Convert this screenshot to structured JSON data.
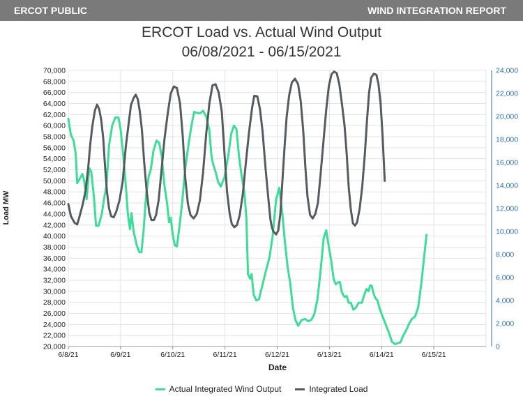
{
  "header": {
    "left_label": "ERCOT PUBLIC",
    "right_label": "WIND INTEGRATION REPORT"
  },
  "colors": {
    "header_bg": "#7a7a7a",
    "wind": "#3ddc97",
    "load": "#555b61",
    "right_axis": "#2f6fb0"
  },
  "chart_data": {
    "type": "line",
    "title": "ERCOT Load vs. Actual Wind Output",
    "subtitle": "06/08/2021  -  06/15/2021",
    "xlabel": "Date",
    "ylabel": "Load MW",
    "x_tick_labels": [
      "6/8/21",
      "6/9/21",
      "6/10/21",
      "6/11/21",
      "6/12/21",
      "6/13/21",
      "6/14/21",
      "6/15/21"
    ],
    "x_range_days": [
      0,
      8
    ],
    "y_left": {
      "lim": [
        20000,
        70000
      ],
      "tick_labels": [
        "20,000",
        "22,000",
        "24,000",
        "26,000",
        "28,000",
        "30,000",
        "32,000",
        "34,000",
        "36,000",
        "38,000",
        "40,000",
        "42,000",
        "44,000",
        "46,000",
        "48,000",
        "50,000",
        "52,000",
        "54,000",
        "56,000",
        "58,000",
        "60,000",
        "62,000",
        "64,000",
        "66,000",
        "68,000",
        "70,000"
      ]
    },
    "y_right": {
      "lim": [
        0,
        24000
      ],
      "tick_labels": [
        "0",
        "2,000",
        "4,000",
        "6,000",
        "8,000",
        "10,000",
        "12,000",
        "14,000",
        "16,000",
        "18,000",
        "20,000",
        "22,000",
        "24,000"
      ]
    },
    "grid": true,
    "legend_position": "bottom-center",
    "series": [
      {
        "name": "Actual Integrated Wind Output",
        "axis": "right",
        "color": "#3ddc97",
        "points": [
          [
            0.0,
            19800
          ],
          [
            0.05,
            18400
          ],
          [
            0.1,
            17900
          ],
          [
            0.14,
            16800
          ],
          [
            0.17,
            14200
          ],
          [
            0.22,
            14600
          ],
          [
            0.27,
            15000
          ],
          [
            0.3,
            14500
          ],
          [
            0.35,
            12800
          ],
          [
            0.4,
            15500
          ],
          [
            0.44,
            15200
          ],
          [
            0.49,
            13000
          ],
          [
            0.53,
            10500
          ],
          [
            0.58,
            10500
          ],
          [
            0.64,
            11500
          ],
          [
            0.69,
            13000
          ],
          [
            0.73,
            14000
          ],
          [
            0.78,
            17500
          ],
          [
            0.84,
            19200
          ],
          [
            0.9,
            19900
          ],
          [
            0.96,
            19900
          ],
          [
            1.0,
            18900
          ],
          [
            1.05,
            16700
          ],
          [
            1.1,
            14000
          ],
          [
            1.14,
            11500
          ],
          [
            1.18,
            10200
          ],
          [
            1.21,
            11600
          ],
          [
            1.25,
            10000
          ],
          [
            1.31,
            8800
          ],
          [
            1.36,
            8200
          ],
          [
            1.4,
            8200
          ],
          [
            1.44,
            10000
          ],
          [
            1.49,
            13200
          ],
          [
            1.54,
            14800
          ],
          [
            1.58,
            15400
          ],
          [
            1.63,
            17000
          ],
          [
            1.69,
            17900
          ],
          [
            1.74,
            17700
          ],
          [
            1.79,
            16500
          ],
          [
            1.84,
            14000
          ],
          [
            1.89,
            12500
          ],
          [
            1.93,
            10800
          ],
          [
            1.96,
            11200
          ],
          [
            2.0,
            9700
          ],
          [
            2.04,
            8800
          ],
          [
            2.08,
            8700
          ],
          [
            2.13,
            10500
          ],
          [
            2.18,
            12500
          ],
          [
            2.24,
            15500
          ],
          [
            2.3,
            17500
          ],
          [
            2.35,
            19000
          ],
          [
            2.41,
            20400
          ],
          [
            2.47,
            20300
          ],
          [
            2.53,
            20300
          ],
          [
            2.58,
            20500
          ],
          [
            2.64,
            20000
          ],
          [
            2.7,
            18800
          ],
          [
            2.74,
            16600
          ],
          [
            2.77,
            15900
          ],
          [
            2.82,
            15200
          ],
          [
            2.87,
            14300
          ],
          [
            2.92,
            13900
          ],
          [
            2.99,
            14700
          ],
          [
            3.06,
            16500
          ],
          [
            3.12,
            18500
          ],
          [
            3.17,
            19200
          ],
          [
            3.22,
            18900
          ],
          [
            3.27,
            16500
          ],
          [
            3.32,
            14800
          ],
          [
            3.37,
            13500
          ],
          [
            3.41,
            11200
          ],
          [
            3.44,
            6300
          ],
          [
            3.48,
            5900
          ],
          [
            3.51,
            6300
          ],
          [
            3.55,
            4500
          ],
          [
            3.6,
            4000
          ],
          [
            3.65,
            4100
          ],
          [
            3.71,
            5200
          ],
          [
            3.78,
            6500
          ],
          [
            3.85,
            7700
          ],
          [
            3.91,
            9500
          ],
          [
            3.98,
            12800
          ],
          [
            4.04,
            13800
          ],
          [
            4.1,
            11500
          ],
          [
            4.15,
            9000
          ],
          [
            4.2,
            6900
          ],
          [
            4.25,
            5500
          ],
          [
            4.3,
            3400
          ],
          [
            4.35,
            2300
          ],
          [
            4.4,
            1800
          ],
          [
            4.47,
            2300
          ],
          [
            4.53,
            2400
          ],
          [
            4.59,
            2200
          ],
          [
            4.65,
            2300
          ],
          [
            4.71,
            2800
          ],
          [
            4.77,
            4100
          ],
          [
            4.83,
            6500
          ],
          [
            4.89,
            9400
          ],
          [
            4.94,
            10100
          ],
          [
            4.98,
            8900
          ],
          [
            5.03,
            7600
          ],
          [
            5.08,
            5900
          ],
          [
            5.12,
            5400
          ],
          [
            5.17,
            5600
          ],
          [
            5.2,
            5600
          ],
          [
            5.24,
            4700
          ],
          [
            5.29,
            4300
          ],
          [
            5.33,
            4400
          ],
          [
            5.37,
            3800
          ],
          [
            5.41,
            3800
          ],
          [
            5.46,
            3200
          ],
          [
            5.51,
            3400
          ],
          [
            5.56,
            3800
          ],
          [
            5.62,
            3800
          ],
          [
            5.67,
            4500
          ],
          [
            5.71,
            5000
          ],
          [
            5.75,
            4800
          ],
          [
            5.78,
            5300
          ],
          [
            5.81,
            5300
          ],
          [
            5.84,
            4700
          ],
          [
            5.88,
            4200
          ],
          [
            5.92,
            4000
          ],
          [
            5.97,
            3200
          ],
          [
            6.02,
            2600
          ],
          [
            6.08,
            1900
          ],
          [
            6.14,
            1200
          ],
          [
            6.2,
            400
          ],
          [
            6.26,
            200
          ],
          [
            6.31,
            300
          ],
          [
            6.36,
            350
          ],
          [
            6.41,
            900
          ],
          [
            6.47,
            1400
          ],
          [
            6.53,
            2000
          ],
          [
            6.58,
            2400
          ],
          [
            6.64,
            2600
          ],
          [
            6.7,
            3400
          ],
          [
            6.76,
            5500
          ],
          [
            6.82,
            8000
          ],
          [
            6.86,
            9700
          ]
        ]
      },
      {
        "name": "Integrated Load",
        "axis": "left",
        "color": "#555b61",
        "points": [
          [
            0.0,
            45800
          ],
          [
            0.05,
            43600
          ],
          [
            0.12,
            42400
          ],
          [
            0.17,
            42100
          ],
          [
            0.21,
            43400
          ],
          [
            0.27,
            45500
          ],
          [
            0.33,
            48200
          ],
          [
            0.38,
            52400
          ],
          [
            0.42,
            56600
          ],
          [
            0.46,
            59900
          ],
          [
            0.51,
            62800
          ],
          [
            0.55,
            63800
          ],
          [
            0.59,
            63000
          ],
          [
            0.63,
            61000
          ],
          [
            0.67,
            57500
          ],
          [
            0.7,
            53000
          ],
          [
            0.74,
            48000
          ],
          [
            0.78,
            45000
          ],
          [
            0.82,
            43600
          ],
          [
            0.87,
            43400
          ],
          [
            0.92,
            44500
          ],
          [
            0.98,
            46500
          ],
          [
            1.04,
            49800
          ],
          [
            1.1,
            56200
          ],
          [
            1.16,
            60800
          ],
          [
            1.2,
            63700
          ],
          [
            1.25,
            65000
          ],
          [
            1.29,
            65600
          ],
          [
            1.33,
            64800
          ],
          [
            1.37,
            62500
          ],
          [
            1.41,
            59100
          ],
          [
            1.45,
            53600
          ],
          [
            1.5,
            48200
          ],
          [
            1.55,
            44200
          ],
          [
            1.59,
            42900
          ],
          [
            1.64,
            42900
          ],
          [
            1.68,
            43800
          ],
          [
            1.73,
            46500
          ],
          [
            1.78,
            51500
          ],
          [
            1.84,
            57500
          ],
          [
            1.9,
            62000
          ],
          [
            1.96,
            65800
          ],
          [
            2.02,
            67100
          ],
          [
            2.08,
            66800
          ],
          [
            2.14,
            64000
          ],
          [
            2.19,
            58200
          ],
          [
            2.24,
            50500
          ],
          [
            2.29,
            45800
          ],
          [
            2.34,
            43800
          ],
          [
            2.4,
            43200
          ],
          [
            2.46,
            44000
          ],
          [
            2.52,
            46500
          ],
          [
            2.58,
            51500
          ],
          [
            2.64,
            58500
          ],
          [
            2.7,
            64000
          ],
          [
            2.76,
            67300
          ],
          [
            2.82,
            67500
          ],
          [
            2.88,
            66000
          ],
          [
            2.94,
            62500
          ],
          [
            2.99,
            55000
          ],
          [
            3.04,
            48000
          ],
          [
            3.09,
            44000
          ],
          [
            3.13,
            42200
          ],
          [
            3.18,
            41600
          ],
          [
            3.23,
            42000
          ],
          [
            3.28,
            43700
          ],
          [
            3.34,
            47500
          ],
          [
            3.4,
            53300
          ],
          [
            3.46,
            58800
          ],
          [
            3.52,
            63300
          ],
          [
            3.56,
            65400
          ],
          [
            3.62,
            65300
          ],
          [
            3.67,
            63000
          ],
          [
            3.72,
            59000
          ],
          [
            3.78,
            52000
          ],
          [
            3.83,
            46800
          ],
          [
            3.87,
            43000
          ],
          [
            3.9,
            41500
          ],
          [
            3.93,
            40800
          ],
          [
            3.98,
            40300
          ],
          [
            4.02,
            41000
          ],
          [
            4.06,
            44000
          ],
          [
            4.1,
            50000
          ],
          [
            4.14,
            56000
          ],
          [
            4.18,
            61500
          ],
          [
            4.23,
            65500
          ],
          [
            4.28,
            67800
          ],
          [
            4.34,
            68500
          ],
          [
            4.4,
            67500
          ],
          [
            4.45,
            64500
          ],
          [
            4.5,
            59000
          ],
          [
            4.54,
            52500
          ],
          [
            4.58,
            47200
          ],
          [
            4.63,
            43800
          ],
          [
            4.68,
            43200
          ],
          [
            4.73,
            44000
          ],
          [
            4.78,
            46000
          ],
          [
            4.83,
            51000
          ],
          [
            4.89,
            57500
          ],
          [
            4.94,
            63000
          ],
          [
            4.99,
            67200
          ],
          [
            5.04,
            69300
          ],
          [
            5.09,
            69800
          ],
          [
            5.14,
            69500
          ],
          [
            5.19,
            67500
          ],
          [
            5.24,
            64000
          ],
          [
            5.29,
            60000
          ],
          [
            5.33,
            55000
          ],
          [
            5.37,
            48800
          ],
          [
            5.41,
            44800
          ],
          [
            5.45,
            42300
          ],
          [
            5.49,
            41900
          ],
          [
            5.53,
            42500
          ],
          [
            5.58,
            45000
          ],
          [
            5.63,
            49000
          ],
          [
            5.68,
            55000
          ],
          [
            5.72,
            61000
          ],
          [
            5.76,
            66000
          ],
          [
            5.8,
            68700
          ],
          [
            5.85,
            69400
          ],
          [
            5.9,
            69200
          ],
          [
            5.94,
            67500
          ],
          [
            5.98,
            64000
          ],
          [
            6.02,
            58000
          ],
          [
            6.06,
            50000
          ]
        ]
      }
    ]
  }
}
